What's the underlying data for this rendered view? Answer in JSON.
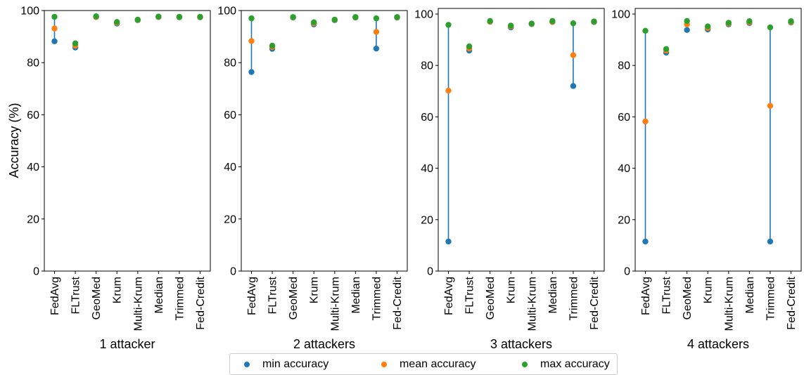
{
  "colors": {
    "min": "#1f77b4",
    "mean": "#ff7f0e",
    "max": "#2ca02c"
  },
  "legend": {
    "min_label": "min accuracy",
    "mean_label": "mean accuracy",
    "max_label": "max accuracy"
  },
  "chart_data": [
    {
      "type": "scatter",
      "title": "1 attacker",
      "ylabel": "Accuracy (%)",
      "ylim": [
        0,
        100
      ],
      "yticks": [
        0,
        20,
        40,
        60,
        80,
        100
      ],
      "categories": [
        "FedAvg",
        "FLTrust",
        "GeoMed",
        "Krum",
        "Multi-Krum",
        "Median",
        "Trimmed",
        "Fed-Credit"
      ],
      "series": [
        {
          "name": "min accuracy",
          "values": [
            88.2,
            85.8,
            97.5,
            95.0,
            96.3,
            97.5,
            97.4,
            97.4
          ]
        },
        {
          "name": "mean accuracy",
          "values": [
            93.1,
            86.5,
            97.6,
            95.3,
            96.4,
            97.6,
            97.5,
            97.5
          ]
        },
        {
          "name": "max accuracy",
          "values": [
            97.6,
            87.4,
            97.8,
            95.6,
            96.5,
            97.7,
            97.6,
            97.6
          ]
        }
      ]
    },
    {
      "type": "scatter",
      "title": "2 attackers",
      "ylabel": "",
      "ylim": [
        0,
        100
      ],
      "yticks": [
        0,
        20,
        40,
        60,
        80,
        100
      ],
      "categories": [
        "FedAvg",
        "FLTrust",
        "GeoMed",
        "Krum",
        "Multi-Krum",
        "Median",
        "Trimmed",
        "Fed-Credit"
      ],
      "series": [
        {
          "name": "min accuracy",
          "values": [
            76.4,
            85.3,
            97.3,
            94.7,
            96.3,
            97.3,
            85.4,
            97.3
          ]
        },
        {
          "name": "mean accuracy",
          "values": [
            88.3,
            86.0,
            97.4,
            95.1,
            96.4,
            97.4,
            91.8,
            97.4
          ]
        },
        {
          "name": "max accuracy",
          "values": [
            97.0,
            86.5,
            97.5,
            95.5,
            96.5,
            97.5,
            97.0,
            97.5
          ]
        }
      ]
    },
    {
      "type": "scatter",
      "title": "3 attackers",
      "ylabel": "",
      "ylim": [
        0,
        100
      ],
      "yticks": [
        0,
        20,
        40,
        60,
        80,
        100
      ],
      "categories": [
        "FedAvg",
        "FLTrust",
        "GeoMed",
        "Krum",
        "Multi-Krum",
        "Median",
        "Trimmed",
        "Fed-Credit"
      ],
      "series": [
        {
          "name": "min accuracy",
          "values": [
            11.5,
            85.8,
            97.0,
            94.8,
            96.1,
            96.9,
            72.0,
            96.9
          ]
        },
        {
          "name": "mean accuracy",
          "values": [
            70.2,
            86.6,
            97.1,
            95.2,
            96.2,
            97.0,
            84.0,
            97.0
          ]
        },
        {
          "name": "max accuracy",
          "values": [
            95.8,
            87.4,
            97.3,
            95.5,
            96.3,
            97.3,
            96.4,
            97.1
          ]
        }
      ]
    },
    {
      "type": "scatter",
      "title": "4 attackers",
      "ylabel": "",
      "ylim": [
        0,
        100
      ],
      "yticks": [
        0,
        20,
        40,
        60,
        80,
        100
      ],
      "categories": [
        "FedAvg",
        "FLTrust",
        "GeoMed",
        "Krum",
        "Multi-Krum",
        "Median",
        "Trimmed",
        "Fed-Credit"
      ],
      "series": [
        {
          "name": "min accuracy",
          "values": [
            11.5,
            85.0,
            93.8,
            94.0,
            96.0,
            96.5,
            11.5,
            96.7
          ]
        },
        {
          "name": "mean accuracy",
          "values": [
            58.2,
            85.8,
            96.0,
            94.6,
            96.3,
            96.8,
            64.3,
            96.9
          ]
        },
        {
          "name": "max accuracy",
          "values": [
            93.5,
            86.4,
            97.3,
            95.2,
            96.6,
            97.2,
            94.8,
            97.2
          ]
        }
      ]
    }
  ]
}
